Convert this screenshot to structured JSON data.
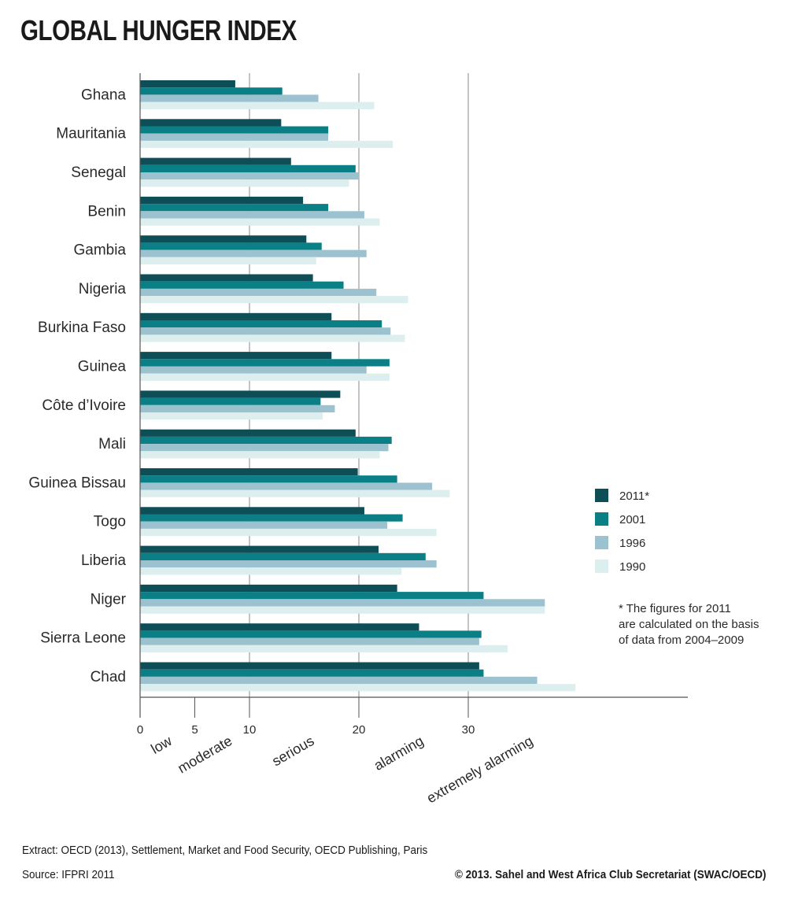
{
  "title": "GLOBAL HUNGER INDEX",
  "chart_data": {
    "type": "bar",
    "orientation": "horizontal",
    "title": "GLOBAL HUNGER INDEX",
    "categories": [
      "Ghana",
      "Mauritania",
      "Senegal",
      "Benin",
      "Gambia",
      "Nigeria",
      "Burkina Faso",
      "Guinea",
      "Côte d’Ivoire",
      "Mali",
      "Guinea Bissau",
      "Togo",
      "Liberia",
      "Niger",
      "Sierra Leone",
      "Chad"
    ],
    "series": [
      {
        "name": "2011*",
        "color": "#0e4f57",
        "values": [
          8.7,
          12.9,
          13.8,
          14.9,
          15.2,
          15.8,
          17.5,
          17.5,
          18.3,
          19.7,
          19.9,
          20.5,
          21.8,
          23.5,
          25.5,
          31.0
        ]
      },
      {
        "name": "2001",
        "color": "#0a7f86",
        "values": [
          13.0,
          17.2,
          19.7,
          17.2,
          16.6,
          18.6,
          22.1,
          22.8,
          16.5,
          23.0,
          23.5,
          24.0,
          26.1,
          31.4,
          31.2,
          31.4
        ]
      },
      {
        "name": "1996",
        "color": "#9dc2cf",
        "values": [
          16.3,
          17.2,
          20.0,
          20.5,
          20.7,
          21.6,
          22.9,
          20.7,
          17.8,
          22.7,
          26.7,
          22.6,
          27.1,
          37.0,
          31.0,
          36.3
        ]
      },
      {
        "name": "1990",
        "color": "#dceeed",
        "values": [
          21.4,
          23.1,
          19.1,
          21.9,
          16.1,
          24.5,
          24.2,
          22.8,
          16.7,
          21.9,
          28.3,
          27.1,
          23.9,
          37.0,
          33.6,
          39.8
        ]
      }
    ],
    "xlim": [
      0,
      50
    ],
    "x_ticks": [
      0,
      5,
      10,
      20,
      30
    ],
    "x_tick_labels": [
      "0",
      "5",
      "10",
      "20",
      "30"
    ],
    "severity_bands": [
      {
        "label": "low",
        "center": 2
      },
      {
        "label": "moderate",
        "center": 7.5
      },
      {
        "label": "serious",
        "center": 15
      },
      {
        "label": "alarming",
        "center": 25
      },
      {
        "label": "extremely alarming",
        "center": 35
      }
    ],
    "gridlines_at": [
      10,
      20,
      30
    ],
    "legend_position": "right",
    "note": [
      "* The figures for 2011",
      "are calculated on the basis",
      "of data from 2004–2009"
    ]
  },
  "footer": {
    "extract": "Extract: OECD (2013), Settlement, Market and Food Security, OECD Publishing, Paris",
    "source": "Source: IFPRI 2011",
    "copyright": "© 2013. Sahel and West Africa Club Secretariat (SWAC/OECD)"
  }
}
